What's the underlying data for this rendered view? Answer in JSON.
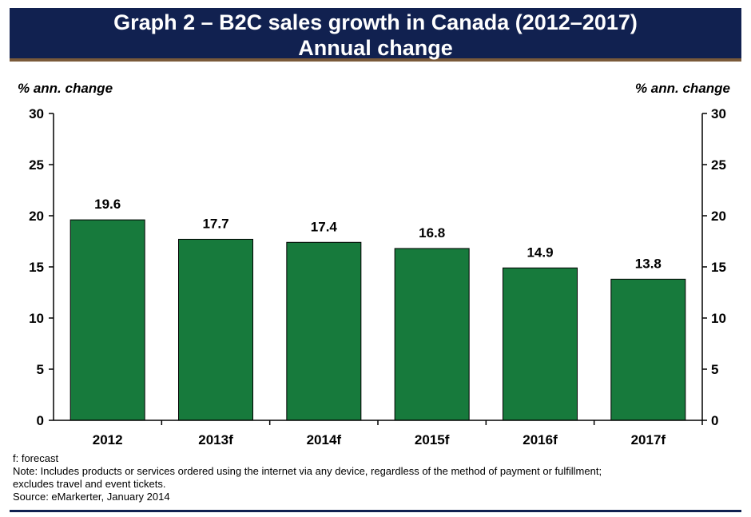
{
  "chart_data": {
    "type": "bar",
    "title": "Graph 2 –  B2C sales growth in Canada (2012–2017)",
    "subtitle": "Annual change",
    "ylabel_left": "% ann. change",
    "ylabel_right": "% ann. change",
    "categories": [
      "2012",
      "2013f",
      "2014f",
      "2015f",
      "2016f",
      "2017f"
    ],
    "values": [
      19.6,
      17.7,
      17.4,
      16.8,
      14.9,
      13.8
    ],
    "data_labels": [
      "19.6",
      "17.7",
      "17.4",
      "16.8",
      "14.9",
      "13.8"
    ],
    "ylim": [
      0,
      30
    ],
    "yticks": [
      0,
      5,
      10,
      15,
      20,
      25,
      30
    ],
    "ytick_labels": [
      "0",
      "5",
      "10",
      "15",
      "20",
      "25",
      "30"
    ],
    "grid": false,
    "bar_color": "#177a3c"
  },
  "notes": {
    "forecast": "f: forecast",
    "note_line1": "Note: Includes products or services ordered using the internet via any device, regardless of the method of payment or fulfillment;",
    "note_line2": "excludes travel and event tickets.",
    "source": "Source: eMarkerter, January 2014"
  },
  "colors": {
    "header_bg": "#112150",
    "bar": "#177a3c"
  }
}
